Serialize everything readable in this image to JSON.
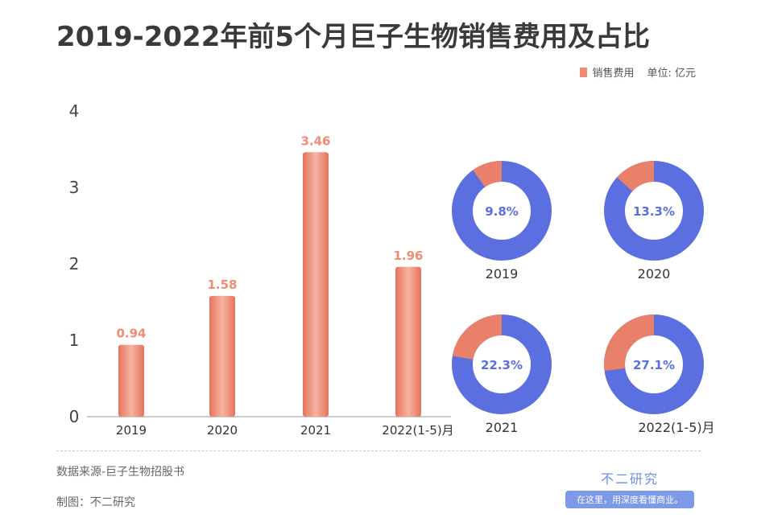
{
  "title": "2019-2022年前5个月巨子生物销售费用及占比",
  "legend": {
    "series": "销售费用",
    "unit": "单位: 亿元"
  },
  "chart_data": [
    {
      "type": "bar",
      "categories": [
        "2019",
        "2020",
        "2021",
        "2022(1-5)月"
      ],
      "series": [
        {
          "name": "销售费用",
          "values": [
            0.94,
            1.58,
            3.46,
            1.96
          ]
        }
      ],
      "yticks": [
        "0",
        "1",
        "2",
        "3",
        "4"
      ],
      "ylim": [
        0,
        4
      ],
      "grid": false,
      "legend": "top-right",
      "color": "#ee8c74"
    },
    {
      "type": "pie",
      "donut": true,
      "charts": [
        {
          "label": "2019",
          "percent": 9.8,
          "text": "9.8%"
        },
        {
          "label": "2020",
          "percent": 13.3,
          "text": "13.3%"
        },
        {
          "label": "2021",
          "percent": 22.3,
          "text": "22.3%"
        },
        {
          "label": "2022(1-5)月",
          "percent": 27.1,
          "text": "27.1%"
        }
      ],
      "colors": {
        "share": "#e8806a",
        "rest": "#5b6fe0",
        "text": "#5b6fe0"
      }
    }
  ],
  "footer": {
    "source": "数据来源-巨子生物招股书",
    "author": "制图：不二研究"
  },
  "logo": {
    "name": "不二研究",
    "slogan": "在这里，用深度看懂商业。"
  }
}
